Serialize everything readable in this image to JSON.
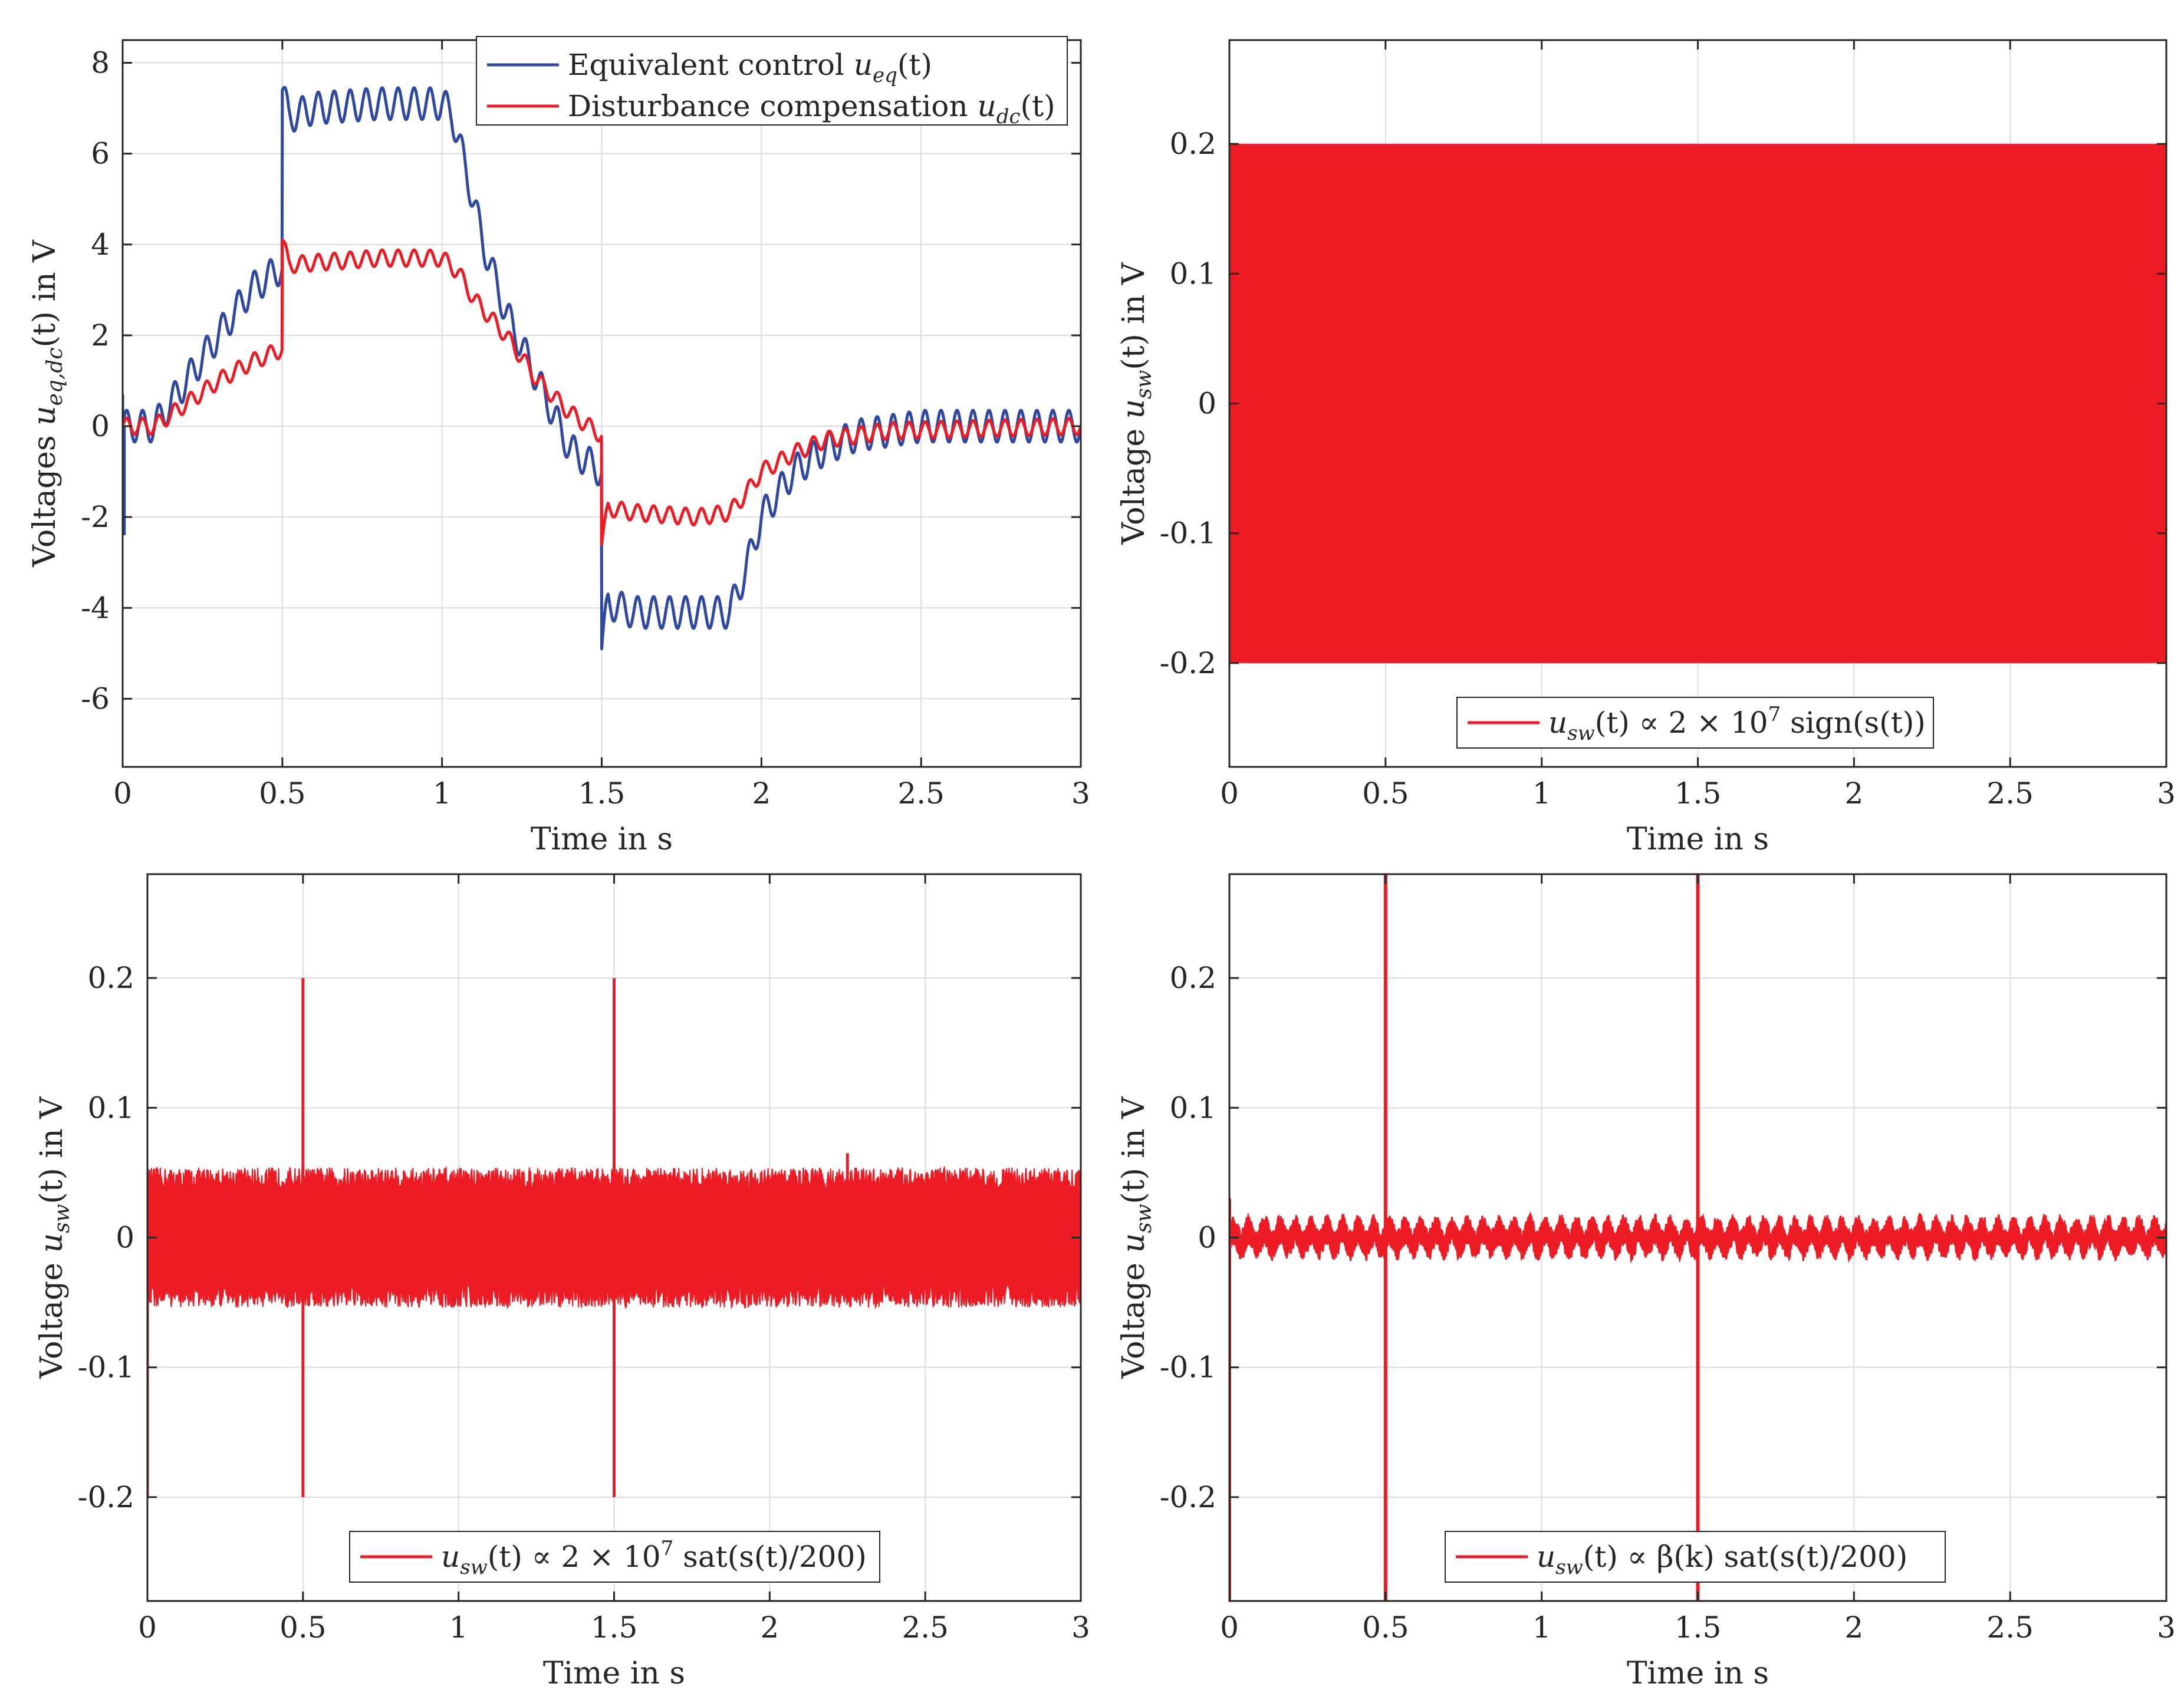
{
  "figure": {
    "colors": {
      "blue": "#2f48a0",
      "red": "#ed1c24",
      "grid": "#dcdcdc",
      "axis": "#262626",
      "text": "#262626"
    }
  },
  "chart_data": [
    {
      "id": "p1",
      "type": "line",
      "xlabel": "Time in s",
      "ylabel": "Voltages u_{eq,dc}(t) in V",
      "ylabel_parts": {
        "pre": "Voltages ",
        "var": "u",
        "sub": "eq,dc",
        "post": "(t) in V"
      },
      "xlim": [
        0,
        3
      ],
      "ylim": [
        -7.5,
        8.5
      ],
      "xticks": [
        0,
        0.5,
        1,
        1.5,
        2,
        2.5,
        3
      ],
      "xtick_labels": [
        "0",
        "0.5",
        "1",
        "1.5",
        "2",
        "2.5",
        "3"
      ],
      "yticks": [
        -6,
        -4,
        -2,
        0,
        2,
        4,
        6,
        8
      ],
      "ytick_labels": [
        "-6",
        "-4",
        "-2",
        "0",
        "2",
        "4",
        "6",
        "8"
      ],
      "grid": true,
      "legend_position": "top-right",
      "series": [
        {
          "name": "Equivalent control u_eq(t)",
          "legend": {
            "text": "Equivalent control ",
            "var": "u",
            "sub": "eq",
            "post": "(t)"
          },
          "color": "#2f48a0",
          "kind": "osc",
          "osc_amp": 0.35,
          "osc_amp_after_1_5": 0.35,
          "osc_period": 0.05,
          "points": [
            [
              0,
              0.0
            ],
            [
              0.1,
              0.0
            ],
            [
              0.2,
              1.0
            ],
            [
              0.3,
              2.0
            ],
            [
              0.4,
              3.0
            ],
            [
              0.499,
              3.5
            ],
            [
              0.5,
              7.4
            ],
            [
              0.52,
              6.8
            ],
            [
              0.6,
              7.0
            ],
            [
              0.8,
              7.1
            ],
            [
              1.0,
              7.1
            ],
            [
              1.03,
              6.9
            ],
            [
              1.08,
              5.5
            ],
            [
              1.13,
              4.0
            ],
            [
              1.2,
              2.5
            ],
            [
              1.3,
              1.0
            ],
            [
              1.4,
              -0.5
            ],
            [
              1.499,
              -1.0
            ],
            [
              1.5,
              -4.9
            ],
            [
              1.52,
              -3.9
            ],
            [
              1.6,
              -4.1
            ],
            [
              1.8,
              -4.1
            ],
            [
              1.9,
              -4.1
            ],
            [
              1.95,
              -3.2
            ],
            [
              2.0,
              -2.0
            ],
            [
              2.1,
              -1.0
            ],
            [
              2.2,
              -0.5
            ],
            [
              2.3,
              -0.2
            ],
            [
              2.5,
              0.0
            ],
            [
              3.0,
              0.0
            ]
          ],
          "spikes": [
            [
              0.0,
              0.7
            ],
            [
              0.005,
              -2.4
            ]
          ]
        },
        {
          "name": "Disturbance compensation u_dc(t)",
          "legend": {
            "text": "Disturbance compensation ",
            "var": "u",
            "sub": "dc",
            "post": "(t)"
          },
          "color": "#ed1c24",
          "kind": "osc",
          "osc_amp": 0.18,
          "osc_period": 0.05,
          "points": [
            [
              0,
              0.0
            ],
            [
              0.1,
              0.0
            ],
            [
              0.2,
              0.5
            ],
            [
              0.3,
              1.0
            ],
            [
              0.4,
              1.4
            ],
            [
              0.499,
              1.7
            ],
            [
              0.5,
              4.1
            ],
            [
              0.52,
              3.55
            ],
            [
              0.6,
              3.6
            ],
            [
              0.8,
              3.7
            ],
            [
              1.0,
              3.7
            ],
            [
              1.05,
              3.4
            ],
            [
              1.1,
              2.8
            ],
            [
              1.2,
              2.0
            ],
            [
              1.3,
              1.0
            ],
            [
              1.4,
              0.3
            ],
            [
              1.499,
              -0.2
            ],
            [
              1.5,
              -2.6
            ],
            [
              1.52,
              -1.8
            ],
            [
              1.6,
              -1.9
            ],
            [
              1.8,
              -2.0
            ],
            [
              1.9,
              -1.9
            ],
            [
              1.95,
              -1.5
            ],
            [
              2.0,
              -1.0
            ],
            [
              2.1,
              -0.6
            ],
            [
              2.2,
              -0.3
            ],
            [
              2.4,
              -0.1
            ],
            [
              3.0,
              0.0
            ]
          ]
        }
      ]
    },
    {
      "id": "p2",
      "type": "line",
      "xlabel": "Time in s",
      "ylabel": "Voltage u_sw(t) in V",
      "ylabel_parts": {
        "pre": "Voltage ",
        "var": "u",
        "sub": "sw",
        "post": "(t) in V"
      },
      "xlim": [
        0,
        3
      ],
      "ylim": [
        -0.28,
        0.28
      ],
      "xticks": [
        0,
        0.5,
        1,
        1.5,
        2,
        2.5,
        3
      ],
      "xtick_labels": [
        "0",
        "0.5",
        "1",
        "1.5",
        "2",
        "2.5",
        "3"
      ],
      "yticks": [
        -0.2,
        -0.1,
        0,
        0.1,
        0.2
      ],
      "ytick_labels": [
        "-0.2",
        "-0.1",
        "0",
        "0.1",
        "0.2"
      ],
      "grid": true,
      "legend_position": "bottom",
      "series": [
        {
          "name": "u_sw(t) ∝ 2 × 10^7 sign(s(t))",
          "legend": {
            "var": "u",
            "sub": "sw",
            "mid": "(t) ∝ 2 × 10",
            "sup": "7",
            "post": " sign(s(t))"
          },
          "color": "#ed1c24",
          "kind": "band",
          "band": [
            -0.2,
            0.2
          ],
          "x_range": [
            0,
            3
          ]
        }
      ]
    },
    {
      "id": "p3",
      "type": "line",
      "xlabel": "Time in s",
      "ylabel": "Voltage u_sw(t) in V",
      "ylabel_parts": {
        "pre": "Voltage ",
        "var": "u",
        "sub": "sw",
        "post": "(t) in V"
      },
      "xlim": [
        0,
        3
      ],
      "ylim": [
        -0.28,
        0.28
      ],
      "xticks": [
        0,
        0.5,
        1,
        1.5,
        2,
        2.5,
        3
      ],
      "xtick_labels": [
        "0",
        "0.5",
        "1",
        "1.5",
        "2",
        "2.5",
        "3"
      ],
      "yticks": [
        -0.2,
        -0.1,
        0,
        0.1,
        0.2
      ],
      "ytick_labels": [
        "-0.2",
        "-0.1",
        "0",
        "0.1",
        "0.2"
      ],
      "grid": true,
      "legend_position": "bottom",
      "series": [
        {
          "name": "u_sw(t) ∝ 2 × 10^7 sat(s(t)/200)",
          "legend": {
            "var": "u",
            "sub": "sw",
            "mid": "(t) ∝ 2 × 10",
            "sup": "7",
            "post": " sat(s(t)/200)"
          },
          "color": "#ed1c24",
          "kind": "noise",
          "core": 0.036,
          "noise_amp": 0.018,
          "x_range": [
            0,
            3
          ],
          "spikes": [
            [
              0.0,
              -0.2
            ],
            [
              0.5,
              0.2
            ],
            [
              0.5,
              -0.2
            ],
            [
              1.5,
              0.2
            ],
            [
              1.5,
              -0.2
            ],
            [
              2.25,
              0.065
            ]
          ]
        }
      ]
    },
    {
      "id": "p4",
      "type": "line",
      "xlabel": "Time in s",
      "ylabel": "Voltage u_sw(t) in V",
      "ylabel_parts": {
        "pre": "Voltage ",
        "var": "u",
        "sub": "sw",
        "post": "(t) in V"
      },
      "xlim": [
        0,
        3
      ],
      "ylim": [
        -0.28,
        0.28
      ],
      "xticks": [
        0,
        0.5,
        1,
        1.5,
        2,
        2.5,
        3
      ],
      "xtick_labels": [
        "0",
        "0.5",
        "1",
        "1.5",
        "2",
        "2.5",
        "3"
      ],
      "yticks": [
        -0.2,
        -0.1,
        0,
        0.1,
        0.2
      ],
      "ytick_labels": [
        "-0.2",
        "-0.1",
        "0",
        "0.1",
        "0.2"
      ],
      "grid": true,
      "legend_position": "bottom",
      "series": [
        {
          "name": "u_sw(t) ∝ β(k) sat(s(t)/200)",
          "legend": {
            "var": "u",
            "sub": "sw",
            "mid": "(t) ∝ β(k) sat(s(t)/200)",
            "sup": "",
            "post": ""
          },
          "color": "#ed1c24",
          "kind": "small",
          "core": 0.01,
          "noise_amp": 0.008,
          "osc_period": 0.05,
          "x_range": [
            0,
            3
          ],
          "spikes": [
            [
              0.0,
              -0.28
            ],
            [
              0.0,
              0.03
            ],
            [
              0.5,
              0.28
            ],
            [
              0.5,
              -0.28
            ],
            [
              1.5,
              0.28
            ],
            [
              1.5,
              -0.28
            ]
          ]
        }
      ]
    }
  ]
}
